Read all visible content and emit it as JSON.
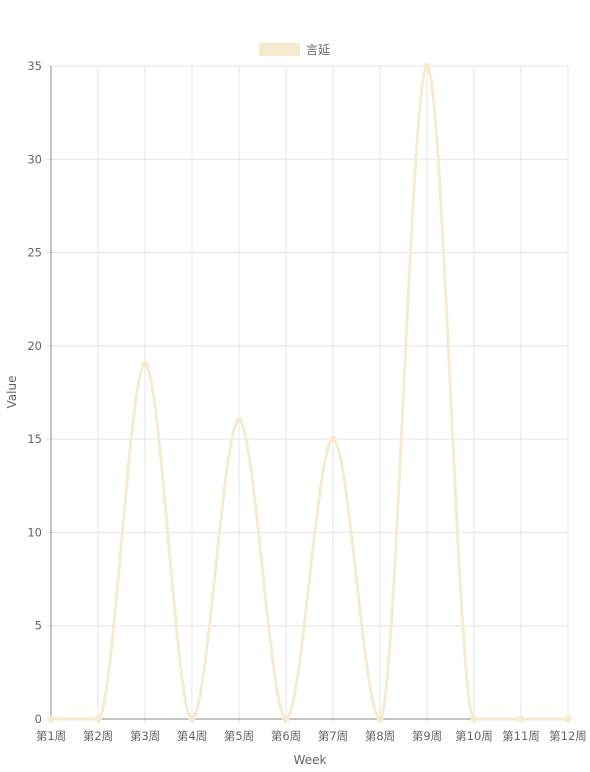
{
  "chart_data": {
    "type": "line",
    "categories": [
      "第1周",
      "第2周",
      "第3周",
      "第4周",
      "第5周",
      "第6周",
      "第7周",
      "第8周",
      "第9周",
      "第10周",
      "第11周",
      "第12周"
    ],
    "series": [
      {
        "name": "言延",
        "values": [
          0,
          0,
          19,
          0,
          16,
          0,
          15,
          0,
          35,
          0,
          0,
          0
        ],
        "color": "#f7ebcf"
      }
    ],
    "xlabel": "Week",
    "ylabel": "Value",
    "ylim": [
      0,
      35
    ],
    "yticks": [
      "0",
      "5",
      "10",
      "15",
      "20",
      "25",
      "30",
      "35"
    ],
    "grid": true,
    "legend_position": "top-center",
    "colors": {
      "grid": "#e5e5e5",
      "axis": "#888888",
      "text": "#666666"
    }
  }
}
